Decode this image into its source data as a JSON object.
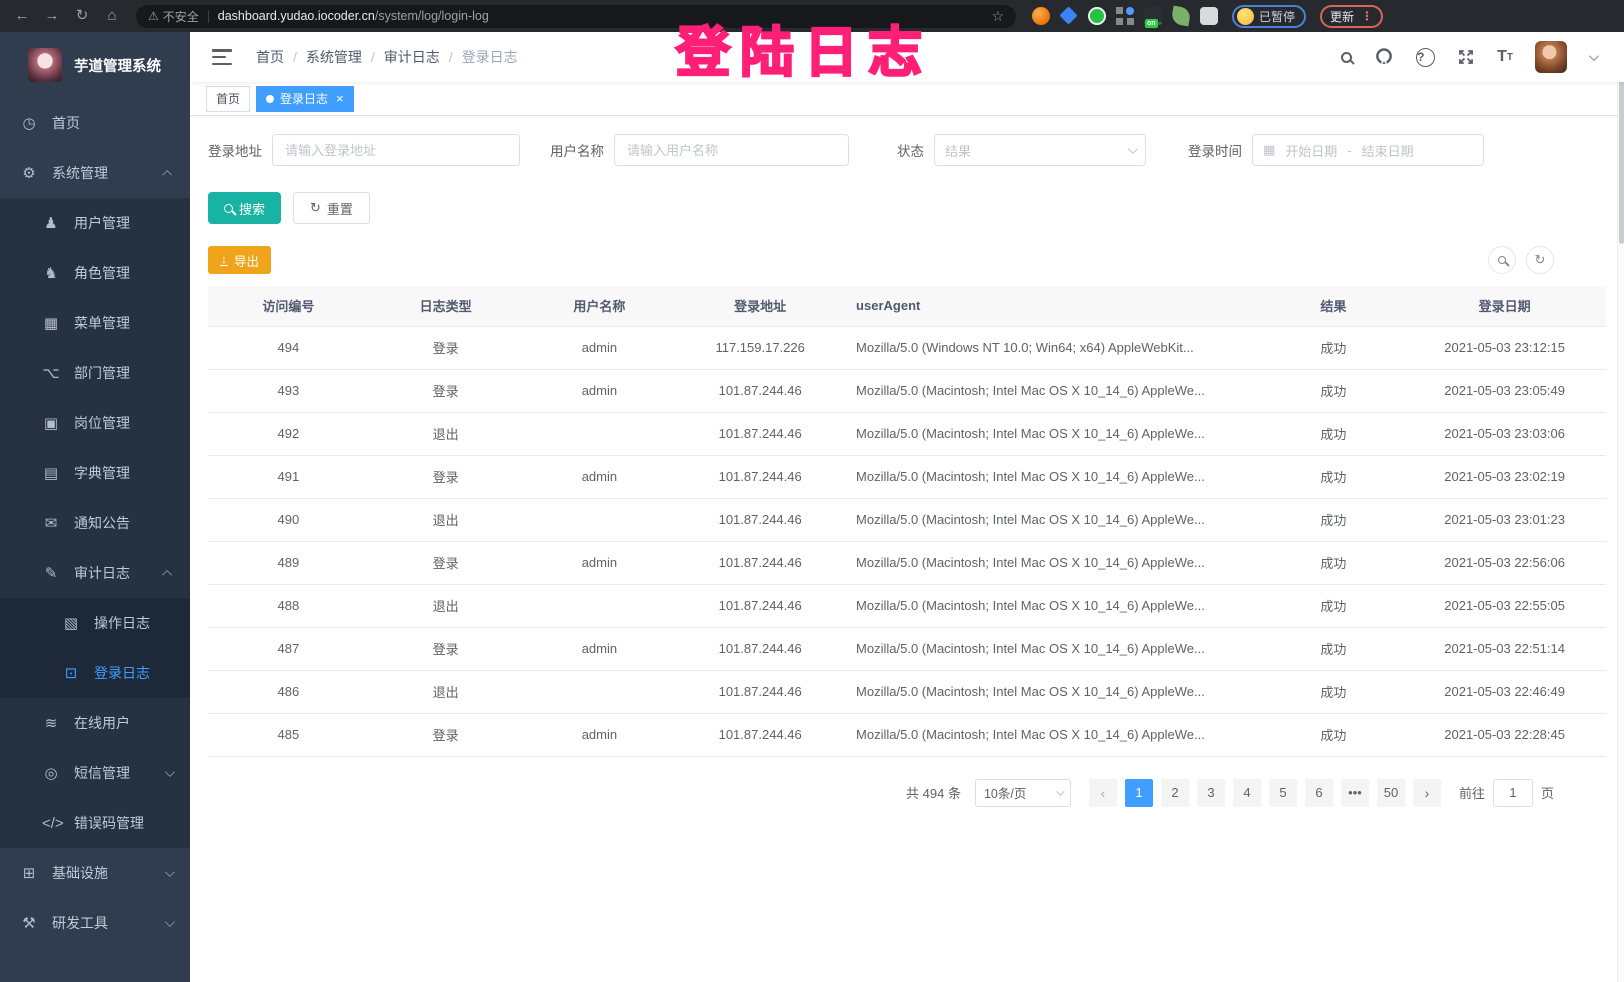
{
  "browser": {
    "security_label": "不安全",
    "url_host": "dashboard.yudao.iocoder.cn",
    "url_path": "/system/log/login-log",
    "paused_badge": "已暂停",
    "update_label": "更新"
  },
  "watermark": "登陆日志",
  "colors": {
    "accent": "#409eff",
    "active_tag": "#409eff",
    "search_button": "#18b3a3",
    "export_button": "#efa41b",
    "watermark_pink": "#ff4d9b",
    "sidebar_bg": "#2f3d4e"
  },
  "sidebar": {
    "app_title": "芋道管理系统",
    "items": [
      {
        "id": "home",
        "label": "首页",
        "icon": "dashboard-icon",
        "glyph": "◷",
        "depth": 0,
        "arrow": "",
        "active": false
      },
      {
        "id": "system",
        "label": "系统管理",
        "icon": "gear-icon",
        "glyph": "⚙",
        "depth": 0,
        "arrow": "up",
        "active": false
      },
      {
        "id": "user-mgmt",
        "label": "用户管理",
        "icon": "user-icon",
        "glyph": "♟",
        "depth": 1,
        "arrow": "",
        "active": false
      },
      {
        "id": "role-mgmt",
        "label": "角色管理",
        "icon": "roles-icon",
        "glyph": "♞",
        "depth": 1,
        "arrow": "",
        "active": false
      },
      {
        "id": "menu-mgmt",
        "label": "菜单管理",
        "icon": "menu-table-icon",
        "glyph": "▦",
        "depth": 1,
        "arrow": "",
        "active": false
      },
      {
        "id": "dept-mgmt",
        "label": "部门管理",
        "icon": "org-tree-icon",
        "glyph": "⌥",
        "depth": 1,
        "arrow": "",
        "active": false
      },
      {
        "id": "post-mgmt",
        "label": "岗位管理",
        "icon": "post-badge-icon",
        "glyph": "▣",
        "depth": 1,
        "arrow": "",
        "active": false
      },
      {
        "id": "dict-mgmt",
        "label": "字典管理",
        "icon": "dict-book-icon",
        "glyph": "▤",
        "depth": 1,
        "arrow": "",
        "active": false
      },
      {
        "id": "notice",
        "label": "通知公告",
        "icon": "message-icon",
        "glyph": "✉",
        "depth": 1,
        "arrow": "",
        "active": false
      },
      {
        "id": "audit-log",
        "label": "审计日志",
        "icon": "edit-log-icon",
        "glyph": "✎",
        "depth": 1,
        "arrow": "up",
        "active": false
      },
      {
        "id": "operation-log",
        "label": "操作日志",
        "icon": "operation-log-icon",
        "glyph": "▧",
        "depth": 2,
        "arrow": "",
        "active": false
      },
      {
        "id": "login-log",
        "label": "登录日志",
        "icon": "login-log-icon",
        "glyph": "⊡",
        "depth": 2,
        "arrow": "",
        "active": true
      },
      {
        "id": "online-user",
        "label": "在线用户",
        "icon": "online-icon",
        "glyph": "≋",
        "depth": 1,
        "arrow": "",
        "active": false
      },
      {
        "id": "sms-mgmt",
        "label": "短信管理",
        "icon": "sms-shield-icon",
        "glyph": "◎",
        "depth": 1,
        "arrow": "down",
        "active": false
      },
      {
        "id": "error-code-mgmt",
        "label": "错误码管理",
        "icon": "code-icon",
        "glyph": "</>",
        "depth": 1,
        "arrow": "",
        "active": false
      },
      {
        "id": "infrastructure",
        "label": "基础设施",
        "icon": "infra-icon",
        "glyph": "⊞",
        "depth": 0,
        "arrow": "down",
        "active": false
      },
      {
        "id": "dev-tools",
        "label": "研发工具",
        "icon": "tools-icon",
        "glyph": "⚒",
        "depth": 0,
        "arrow": "down",
        "active": false
      }
    ]
  },
  "breadcrumb": [
    "首页",
    "系统管理",
    "审计日志",
    "登录日志"
  ],
  "tags": [
    {
      "label": "首页",
      "active": false,
      "closable": false
    },
    {
      "label": "登录日志",
      "active": true,
      "closable": true
    }
  ],
  "filters": {
    "address_label": "登录地址",
    "address_placeholder": "请输入登录地址",
    "username_label": "用户名称",
    "username_placeholder": "请输入用户名称",
    "status_label": "状态",
    "status_placeholder": "结果",
    "time_label": "登录时间",
    "start_placeholder": "开始日期",
    "range_separator": "-",
    "end_placeholder": "结束日期",
    "search_button": "搜索",
    "reset_button": "重置"
  },
  "toolbar": {
    "export_label": "导出"
  },
  "table": {
    "headers": [
      "访问编号",
      "日志类型",
      "用户名称",
      "登录地址",
      "userAgent",
      "结果",
      "登录日期"
    ],
    "rows": [
      [
        "494",
        "登录",
        "admin",
        "117.159.17.226",
        "Mozilla/5.0 (Windows NT 10.0; Win64; x64) AppleWebKit...",
        "成功",
        "2021-05-03 23:12:15"
      ],
      [
        "493",
        "登录",
        "admin",
        "101.87.244.46",
        "Mozilla/5.0 (Macintosh; Intel Mac OS X 10_14_6) AppleWe...",
        "成功",
        "2021-05-03 23:05:49"
      ],
      [
        "492",
        "退出",
        "",
        "101.87.244.46",
        "Mozilla/5.0 (Macintosh; Intel Mac OS X 10_14_6) AppleWe...",
        "成功",
        "2021-05-03 23:03:06"
      ],
      [
        "491",
        "登录",
        "admin",
        "101.87.244.46",
        "Mozilla/5.0 (Macintosh; Intel Mac OS X 10_14_6) AppleWe...",
        "成功",
        "2021-05-03 23:02:19"
      ],
      [
        "490",
        "退出",
        "",
        "101.87.244.46",
        "Mozilla/5.0 (Macintosh; Intel Mac OS X 10_14_6) AppleWe...",
        "成功",
        "2021-05-03 23:01:23"
      ],
      [
        "489",
        "登录",
        "admin",
        "101.87.244.46",
        "Mozilla/5.0 (Macintosh; Intel Mac OS X 10_14_6) AppleWe...",
        "成功",
        "2021-05-03 22:56:06"
      ],
      [
        "488",
        "退出",
        "",
        "101.87.244.46",
        "Mozilla/5.0 (Macintosh; Intel Mac OS X 10_14_6) AppleWe...",
        "成功",
        "2021-05-03 22:55:05"
      ],
      [
        "487",
        "登录",
        "admin",
        "101.87.244.46",
        "Mozilla/5.0 (Macintosh; Intel Mac OS X 10_14_6) AppleWe...",
        "成功",
        "2021-05-03 22:51:14"
      ],
      [
        "486",
        "退出",
        "",
        "101.87.244.46",
        "Mozilla/5.0 (Macintosh; Intel Mac OS X 10_14_6) AppleWe...",
        "成功",
        "2021-05-03 22:46:49"
      ],
      [
        "485",
        "登录",
        "admin",
        "101.87.244.46",
        "Mozilla/5.0 (Macintosh; Intel Mac OS X 10_14_6) AppleWe...",
        "成功",
        "2021-05-03 22:28:45"
      ]
    ]
  },
  "pagination": {
    "total_label": "共 494 条",
    "page_size": "10条/页",
    "pages": [
      "1",
      "2",
      "3",
      "4",
      "5",
      "6",
      "...",
      "50"
    ],
    "active_page": "1",
    "prev": "‹",
    "next": "›",
    "goto_label": "前往",
    "goto_value": "1",
    "goto_suffix": "页"
  }
}
